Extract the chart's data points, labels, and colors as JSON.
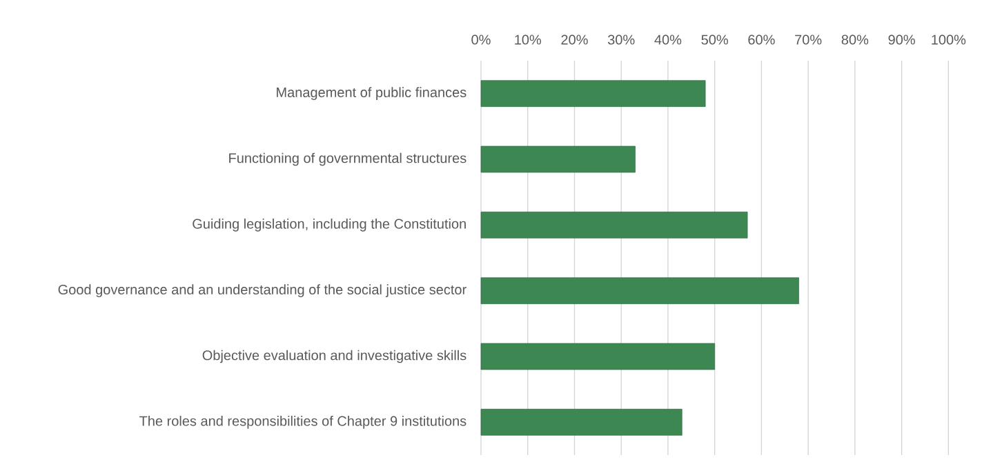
{
  "chart_data": {
    "type": "bar",
    "orientation": "horizontal",
    "categories": [
      "Management of public finances",
      "Functioning of governmental structures",
      "Guiding legislation, including the Constitution",
      "Good governance and an understanding of the social justice sector",
      "Objective evaluation and investigative skills",
      "The roles and responsibilities of Chapter 9 institutions"
    ],
    "values": [
      48,
      33,
      57,
      68,
      50,
      43
    ],
    "color": "#3d8753",
    "xlim": [
      0,
      100
    ],
    "xticks": [
      {
        "value": 0,
        "label": "0%"
      },
      {
        "value": 10,
        "label": "10%"
      },
      {
        "value": 20,
        "label": "20%"
      },
      {
        "value": 30,
        "label": "30%"
      },
      {
        "value": 40,
        "label": "40%"
      },
      {
        "value": 50,
        "label": "50%"
      },
      {
        "value": 60,
        "label": "60%"
      },
      {
        "value": 70,
        "label": "70%"
      },
      {
        "value": 80,
        "label": "80%"
      },
      {
        "value": 90,
        "label": "90%"
      },
      {
        "value": 100,
        "label": "100%"
      }
    ],
    "grid": "x"
  }
}
